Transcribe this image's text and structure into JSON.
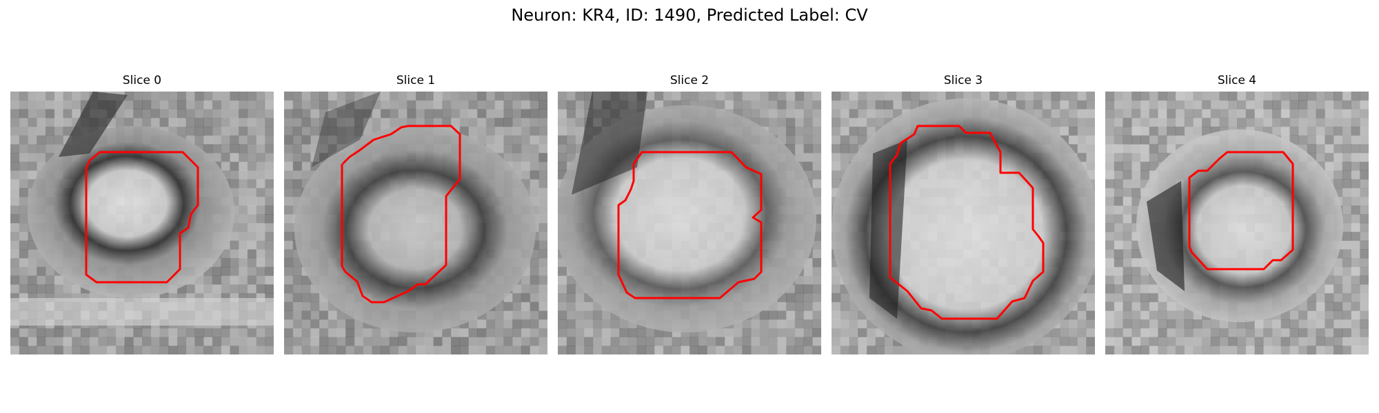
{
  "figure": {
    "title": "Neuron: KR4, ID: 1490, Predicted Label: CV"
  },
  "panels": [
    {
      "title": "Slice 0"
    },
    {
      "title": "Slice 1"
    },
    {
      "title": "Slice 2"
    },
    {
      "title": "Slice 3"
    },
    {
      "title": "Slice 4"
    }
  ],
  "colors": {
    "contour": "#ff0000",
    "background": "#ffffff"
  }
}
